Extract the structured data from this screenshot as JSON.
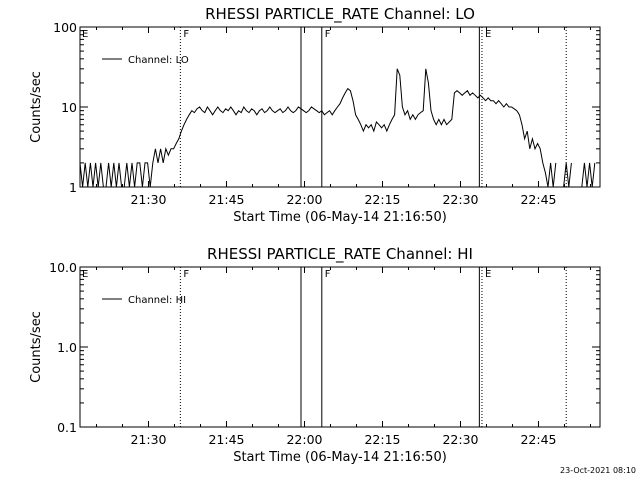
{
  "footer": "23-Oct-2021 08:10",
  "chart_data": [
    {
      "type": "line",
      "title": "RHESSI PARTICLE_RATE Channel: LO",
      "xlabel": "Start Time (06-May-14 21:16:50)",
      "ylabel": "Counts/sec",
      "y_scale": "log",
      "ylim": [
        1,
        100
      ],
      "y_ticks": [
        "1",
        "10",
        "100"
      ],
      "x_ticks": [
        "21:30",
        "21:45",
        "22:00",
        "22:15",
        "22:30",
        "22:45"
      ],
      "xlim_minutes": [
        0,
        100
      ],
      "legend": {
        "label": "Channel: LO",
        "position": "top-left"
      },
      "markers": [
        {
          "minute": 19.3,
          "label": "F",
          "style": "dotted"
        },
        {
          "minute": 42.5,
          "label": "",
          "style": "solid"
        },
        {
          "minute": 46.5,
          "label": "F",
          "style": "solid"
        },
        {
          "minute": 76.8,
          "label": "",
          "style": "solid"
        },
        {
          "minute": 77.3,
          "label": "E",
          "style": "dotted"
        },
        {
          "minute": 93.5,
          "label": "",
          "style": "dotted"
        }
      ],
      "corner_label": "E",
      "series": [
        {
          "name": "Channel: LO",
          "segments": [
            [
              [
                0,
                2
              ],
              [
                0.5,
                1
              ],
              [
                1,
                2
              ],
              [
                1.5,
                1
              ],
              [
                2,
                2
              ],
              [
                2.5,
                1
              ],
              [
                3,
                2
              ],
              [
                3.5,
                1
              ],
              [
                4,
                2
              ],
              [
                4.5,
                1
              ],
              [
                5,
                1
              ],
              [
                5.5,
                2
              ],
              [
                6,
                1
              ],
              [
                6.5,
                2
              ],
              [
                7,
                1
              ],
              [
                7.5,
                2
              ],
              [
                8,
                1
              ],
              [
                8.5,
                1
              ],
              [
                9,
                2
              ],
              [
                9.5,
                1
              ],
              [
                10,
                2
              ],
              [
                10.5,
                1
              ],
              [
                11,
                2
              ],
              [
                11.5,
                2
              ],
              [
                12,
                1
              ],
              [
                12.5,
                2
              ],
              [
                13,
                2
              ],
              [
                13.5,
                1
              ],
              [
                14,
                2
              ],
              [
                14.5,
                3
              ],
              [
                15,
                2
              ],
              [
                15.5,
                3
              ],
              [
                16,
                2
              ],
              [
                16.5,
                3
              ],
              [
                17,
                2.5
              ],
              [
                17.5,
                3
              ],
              [
                18,
                3
              ],
              [
                18.5,
                3.5
              ],
              [
                19,
                4
              ],
              [
                19.5,
                5
              ],
              [
                20,
                6
              ],
              [
                20.5,
                7
              ],
              [
                21,
                8
              ],
              [
                21.5,
                9
              ],
              [
                22,
                8.5
              ],
              [
                22.5,
                9.5
              ],
              [
                23,
                10
              ],
              [
                23.5,
                9
              ],
              [
                24,
                8.5
              ],
              [
                24.5,
                10
              ],
              [
                25,
                9
              ],
              [
                25.5,
                8
              ],
              [
                26,
                9
              ],
              [
                26.5,
                10
              ],
              [
                27,
                9
              ],
              [
                27.5,
                8.5
              ],
              [
                28,
                9.5
              ],
              [
                28.5,
                9
              ],
              [
                29,
                10
              ],
              [
                29.5,
                9
              ],
              [
                30,
                8
              ],
              [
                30.5,
                9
              ],
              [
                31,
                8.5
              ],
              [
                31.5,
                10
              ],
              [
                32,
                9
              ],
              [
                32.5,
                8.5
              ],
              [
                33,
                9.5
              ],
              [
                33.5,
                9
              ],
              [
                34,
                8
              ],
              [
                34.5,
                9
              ],
              [
                35,
                9.5
              ],
              [
                35.5,
                8.5
              ],
              [
                36,
                9
              ],
              [
                36.5,
                10
              ],
              [
                37,
                9
              ],
              [
                37.5,
                8.5
              ],
              [
                38,
                9
              ],
              [
                38.5,
                9.5
              ],
              [
                39,
                8.5
              ],
              [
                39.5,
                9
              ],
              [
                40,
                10
              ],
              [
                40.5,
                9
              ],
              [
                41,
                8.5
              ],
              [
                41.5,
                9
              ],
              [
                42,
                10
              ],
              [
                42.5,
                9.5
              ],
              [
                43,
                9
              ],
              [
                43.5,
                8.5
              ],
              [
                44,
                9
              ],
              [
                44.5,
                10
              ],
              [
                45,
                9.5
              ],
              [
                45.5,
                9
              ],
              [
                46,
                8.5
              ],
              [
                46.5,
                9
              ],
              [
                47,
                8
              ],
              [
                47.5,
                8.5
              ],
              [
                48,
                9
              ],
              [
                48.5,
                8
              ],
              [
                49,
                9
              ],
              [
                49.5,
                10
              ],
              [
                50,
                11
              ],
              [
                50.5,
                13
              ],
              [
                51,
                15
              ],
              [
                51.5,
                17
              ],
              [
                52,
                16
              ],
              [
                52.5,
                12
              ],
              [
                53,
                8
              ],
              [
                53.5,
                7
              ],
              [
                54,
                6
              ],
              [
                54.5,
                5
              ],
              [
                55,
                6
              ],
              [
                55.5,
                5.5
              ],
              [
                56,
                6
              ],
              [
                56.5,
                5
              ],
              [
                57,
                6.5
              ],
              [
                57.5,
                6
              ],
              [
                58,
                5.5
              ],
              [
                58.5,
                6
              ],
              [
                59,
                5
              ],
              [
                59.5,
                6
              ],
              [
                60,
                7
              ],
              [
                60.5,
                8
              ],
              [
                61,
                30
              ],
              [
                61.5,
                25
              ],
              [
                62,
                10
              ],
              [
                62.5,
                8
              ],
              [
                63,
                9
              ],
              [
                63.5,
                7
              ],
              [
                64,
                8
              ],
              [
                64.5,
                7
              ],
              [
                65,
                8
              ],
              [
                65.5,
                8.5
              ],
              [
                66,
                9
              ],
              [
                66.5,
                30
              ],
              [
                67,
                20
              ],
              [
                67.5,
                9
              ],
              [
                68,
                7
              ],
              [
                68.5,
                6
              ],
              [
                69,
                7
              ],
              [
                69.5,
                6
              ],
              [
                70,
                7
              ],
              [
                70.5,
                6
              ],
              [
                71,
                6.5
              ],
              [
                71.5,
                7
              ],
              [
                72,
                15
              ],
              [
                72.5,
                16
              ],
              [
                73,
                15
              ],
              [
                73.5,
                14
              ],
              [
                74,
                15
              ],
              [
                74.5,
                16
              ],
              [
                75,
                14
              ],
              [
                75.5,
                15
              ],
              [
                76,
                14
              ],
              [
                76.5,
                13
              ],
              [
                77,
                14
              ],
              [
                77.5,
                13
              ],
              [
                78,
                12
              ],
              [
                78.5,
                13
              ],
              [
                79,
                12
              ],
              [
                79.5,
                12
              ],
              [
                80,
                11
              ],
              [
                80.5,
                12
              ],
              [
                81,
                11
              ],
              [
                81.5,
                10
              ],
              [
                82,
                11
              ],
              [
                82.5,
                10
              ],
              [
                83,
                10
              ],
              [
                83.5,
                9.5
              ],
              [
                84,
                9
              ],
              [
                84.5,
                8
              ],
              [
                85,
                6
              ],
              [
                85.5,
                4
              ],
              [
                86,
                5
              ],
              [
                86.5,
                3
              ],
              [
                87,
                4
              ],
              [
                87.5,
                3
              ],
              [
                88,
                3.5
              ],
              [
                88.5,
                3
              ],
              [
                89,
                2
              ],
              [
                89.5,
                1.5
              ],
              [
                90,
                1
              ],
              [
                90.5,
                2
              ],
              [
                91,
                1
              ],
              [
                91.5,
                2
              ]
            ],
            [
              [
                93,
                1
              ],
              [
                93.5,
                2
              ],
              [
                94,
                1
              ],
              [
                94.5,
                2
              ]
            ],
            [
              [
                96,
                1
              ],
              [
                96.5,
                1
              ],
              [
                97,
                2
              ],
              [
                97.5,
                1
              ],
              [
                98,
                2
              ],
              [
                98.5,
                1
              ],
              [
                99,
                2
              ]
            ]
          ]
        }
      ]
    },
    {
      "type": "line",
      "title": "RHESSI PARTICLE_RATE Channel: HI",
      "xlabel": "Start Time (06-May-14 21:16:50)",
      "ylabel": "Counts/sec",
      "y_scale": "log",
      "ylim": [
        0.1,
        10
      ],
      "y_ticks": [
        "0.1",
        "1.0",
        "10.0"
      ],
      "x_ticks": [
        "21:30",
        "21:45",
        "22:00",
        "22:15",
        "22:30",
        "22:45"
      ],
      "xlim_minutes": [
        0,
        100
      ],
      "legend": {
        "label": "Channel: HI",
        "position": "top-left"
      },
      "markers": [
        {
          "minute": 19.3,
          "label": "F",
          "style": "dotted"
        },
        {
          "minute": 42.5,
          "label": "",
          "style": "solid"
        },
        {
          "minute": 46.5,
          "label": "F",
          "style": "solid"
        },
        {
          "minute": 76.8,
          "label": "",
          "style": "solid"
        },
        {
          "minute": 77.3,
          "label": "E",
          "style": "dotted"
        },
        {
          "minute": 93.5,
          "label": "",
          "style": "dotted"
        }
      ],
      "corner_label": "E",
      "series": [
        {
          "name": "Channel: HI",
          "segments": []
        }
      ]
    }
  ]
}
